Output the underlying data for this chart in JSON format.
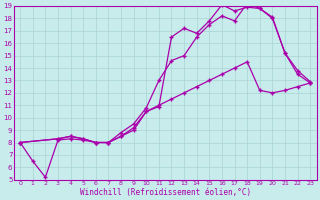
{
  "xlabel": "Windchill (Refroidissement éolien,°C)",
  "ylabel": "",
  "xlim": [
    -0.5,
    23.5
  ],
  "ylim": [
    5,
    19
  ],
  "xticks": [
    0,
    1,
    2,
    3,
    4,
    5,
    6,
    7,
    8,
    9,
    10,
    11,
    12,
    13,
    14,
    15,
    16,
    17,
    18,
    19,
    20,
    21,
    22,
    23
  ],
  "yticks": [
    5,
    6,
    7,
    8,
    9,
    10,
    11,
    12,
    13,
    14,
    15,
    16,
    17,
    18,
    19
  ],
  "background_color": "#c8ecec",
  "grid_color": "#a8d4d4",
  "line_color": "#aa00aa",
  "line1_x": [
    0,
    1,
    2,
    3,
    4,
    5,
    6,
    7,
    8,
    9,
    10,
    11,
    12,
    13,
    14,
    15,
    16,
    17,
    18,
    19,
    20,
    21,
    22,
    23
  ],
  "line1_y": [
    8,
    6.5,
    5.2,
    8.2,
    8.3,
    8.2,
    8.0,
    8.0,
    8.8,
    9.5,
    10.8,
    13.0,
    14.6,
    15.0,
    16.5,
    17.5,
    18.2,
    17.8,
    19.2,
    18.8,
    18.0,
    15.2,
    13.5,
    12.8
  ],
  "line2_x": [
    0,
    3,
    4,
    5,
    6,
    7,
    8,
    9,
    10,
    11,
    12,
    13,
    14,
    15,
    16,
    17,
    18,
    19,
    20,
    21,
    22,
    23
  ],
  "line2_y": [
    8,
    8.3,
    8.5,
    8.3,
    8.0,
    8.0,
    8.5,
    9.0,
    10.5,
    10.9,
    16.5,
    17.2,
    16.8,
    17.8,
    19.1,
    18.6,
    18.9,
    18.8,
    18.1,
    15.2,
    13.8,
    12.9
  ],
  "line3_x": [
    0,
    3,
    4,
    5,
    6,
    7,
    8,
    9,
    10,
    11,
    12,
    13,
    14,
    15,
    16,
    17,
    18,
    19,
    20,
    21,
    22,
    23
  ],
  "line3_y": [
    8,
    8.3,
    8.5,
    8.3,
    8.0,
    8.0,
    8.5,
    9.2,
    10.5,
    11.0,
    11.5,
    12.0,
    12.5,
    13.0,
    13.5,
    14.0,
    14.5,
    12.2,
    12.0,
    12.2,
    12.5,
    12.8
  ]
}
